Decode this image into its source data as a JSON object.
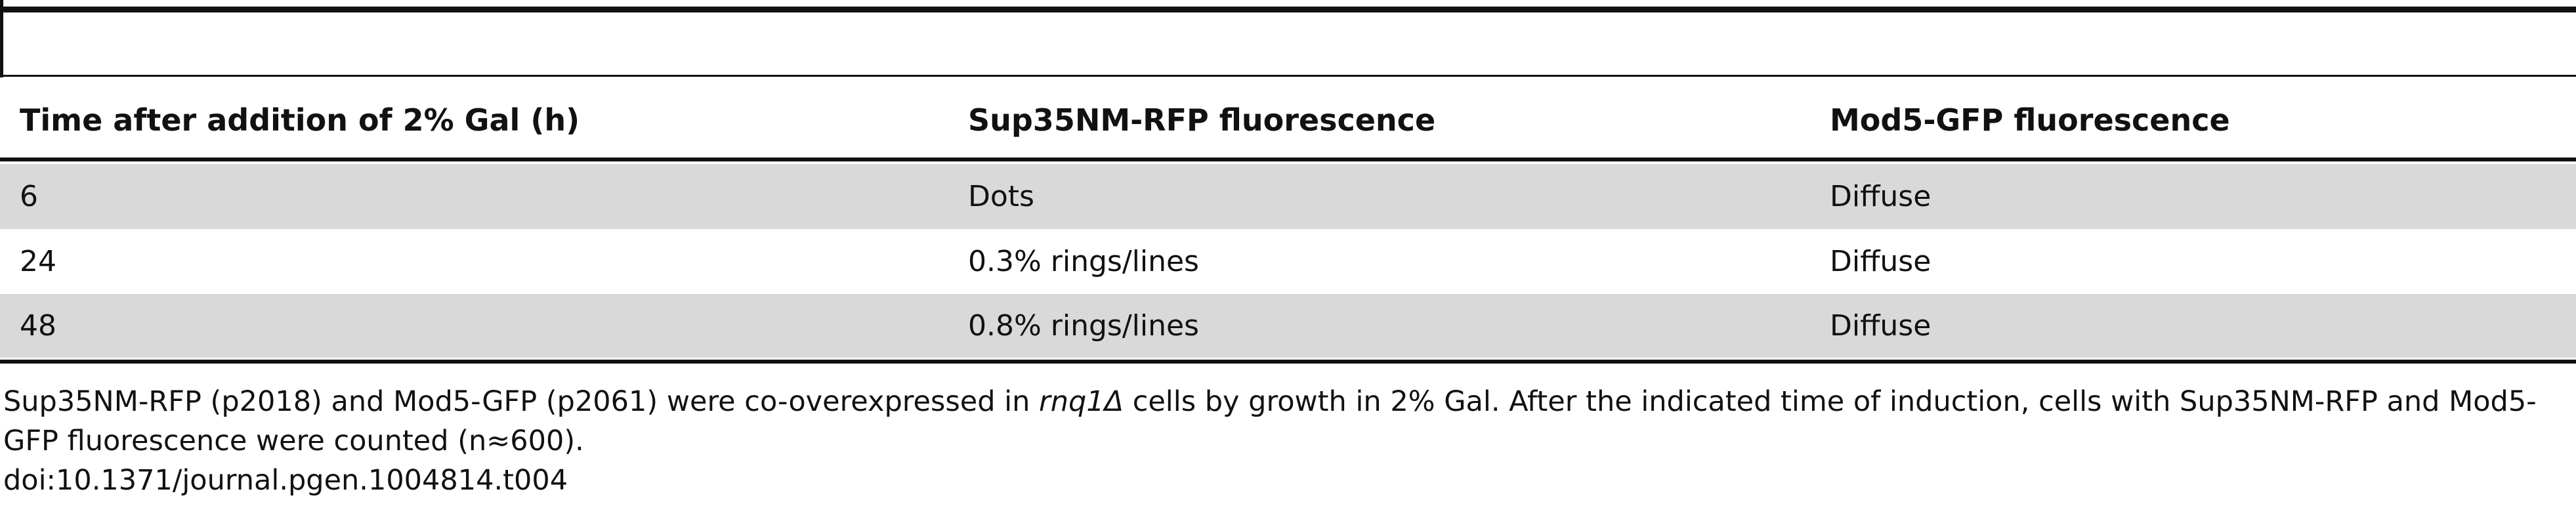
{
  "table": {
    "header": [
      "Time after addition of 2% Gal (h)",
      "Sup35NM-RFP fluorescence",
      "Mod5-GFP fluorescence"
    ],
    "rows": [
      [
        "6",
        "Dots",
        "Diffuse"
      ],
      [
        "24",
        "0.3% rings/lines",
        "Diffuse"
      ],
      [
        "48",
        "0.8% rings/lines",
        "Diffuse"
      ]
    ]
  },
  "footnote": {
    "before": "Sup35NM-RFP (p2018) and Mod5-GFP (p2061) were co-overexpressed in ",
    "italic": "rnq1Δ",
    "after": " cells by growth in 2% Gal. After the indicated time of induction, cells with Sup35NM-RFP and Mod5-GFP fluorescence were counted (n≈600).",
    "doi": "doi:10.1371/journal.pgen.1004814.t004"
  }
}
